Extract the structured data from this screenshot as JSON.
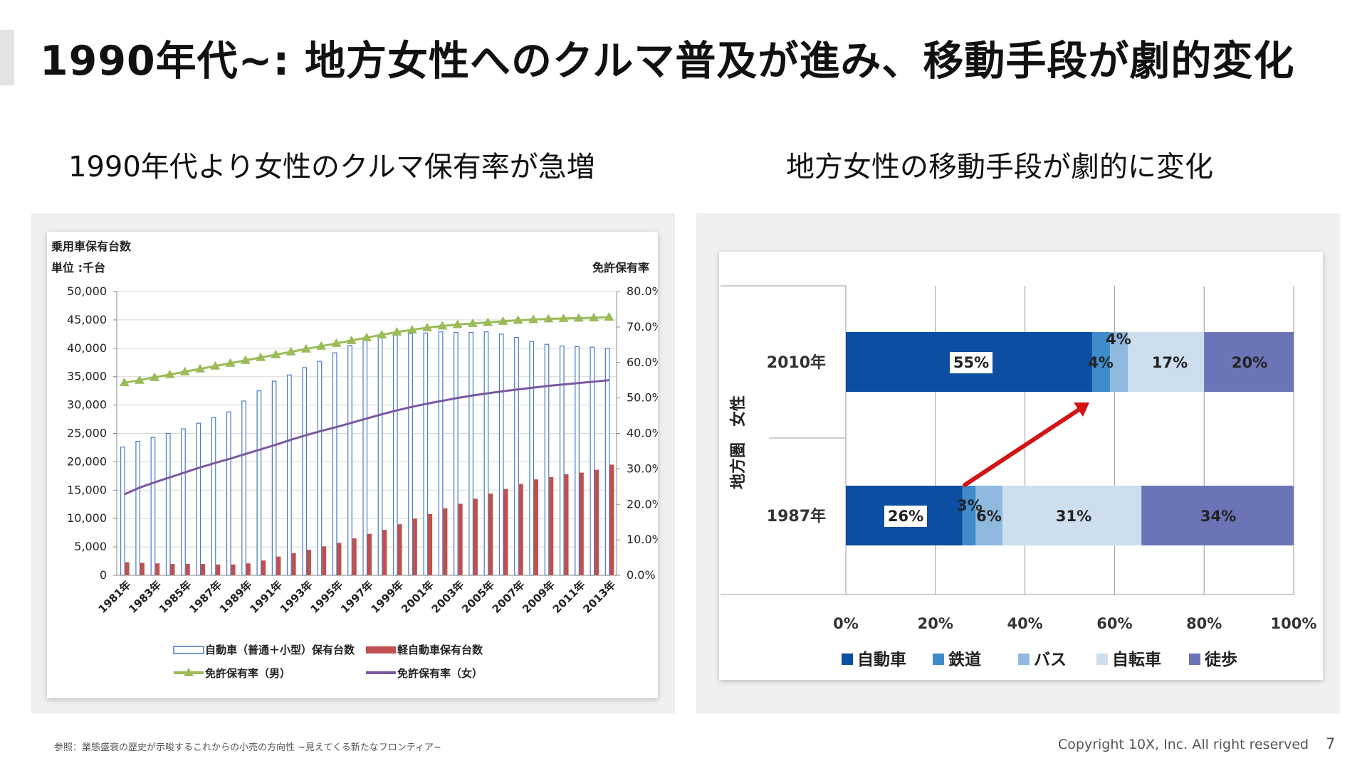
{
  "slide": {
    "title": "1990年代~: 地方女性へのクルマ普及が進み、移動手段が劇的変化",
    "left_subtitle": "1990年代より女性のクルマ保有率が急増",
    "right_subtitle": "地方女性の移動手段が劇的に変化",
    "source": "参照：業態盛衰の歴史が示唆するこれからの小売の方向性 ~見えてくる新たなフロンティア~",
    "copyright": "Copyright 10X, Inc. All right reserved",
    "page_number": "7"
  },
  "colors": {
    "ordinary_bar_stroke": "#4a7ac4",
    "kei_bar_fill": "#c0504d",
    "male_line": "#9bbb59",
    "female_line": "#7a58a0",
    "car": "#0b4ea2",
    "rail": "#3f8bcb",
    "bus": "#8fb9de",
    "bicycle": "#cddeee",
    "walk": "#6b74b6",
    "arrow": "#d21414"
  },
  "chart_data": [
    {
      "type": "bar",
      "title": "乗用車保有台数",
      "unit_label": "単位 :千台",
      "right_axis_title": "免許保有率",
      "categories": [
        "1981年",
        "1982年",
        "1983年",
        "1984年",
        "1985年",
        "1986年",
        "1987年",
        "1988年",
        "1989年",
        "1990年",
        "1991年",
        "1992年",
        "1993年",
        "1994年",
        "1995年",
        "1996年",
        "1997年",
        "1998年",
        "1999年",
        "2000年",
        "2001年",
        "2002年",
        "2003年",
        "2004年",
        "2005年",
        "2006年",
        "2007年",
        "2008年",
        "2009年",
        "2010年",
        "2011年",
        "2012年",
        "2013年"
      ],
      "x_tick_labels": [
        "1981年",
        "1983年",
        "1985年",
        "1987年",
        "1989年",
        "1991年",
        "1993年",
        "1995年",
        "1997年",
        "1999年",
        "2001年",
        "2003年",
        "2005年",
        "2007年",
        "2009年",
        "2011年",
        "2013年"
      ],
      "y_left": {
        "ylim": [
          0,
          50000
        ],
        "ticks": [
          "50,000",
          "45,000",
          "40,000",
          "35,000",
          "30,000",
          "25,000",
          "20,000",
          "15,000",
          "10,000",
          "5,000",
          "0"
        ]
      },
      "y_right": {
        "ylim": [
          0,
          80
        ],
        "ticks": [
          "80.0%",
          "70.0%",
          "60.0%",
          "50.0%",
          "40.0%",
          "30.0%",
          "20.0%",
          "10.0%",
          "0.0%"
        ]
      },
      "series": [
        {
          "name": "自動車（普通＋小型）保有台数",
          "axis": "left",
          "kind": "bar-outline",
          "values": [
            22600,
            23600,
            24300,
            25000,
            25800,
            26800,
            27800,
            28800,
            30700,
            32500,
            34200,
            35300,
            36600,
            37700,
            39200,
            40500,
            41400,
            42000,
            42300,
            42600,
            42700,
            42900,
            42800,
            42800,
            42900,
            42500,
            41900,
            41200,
            40700,
            40400,
            40300,
            40200,
            40000
          ]
        },
        {
          "name": "軽自動車保有台数",
          "axis": "left",
          "kind": "bar-filled",
          "values": [
            2300,
            2200,
            2100,
            2000,
            2000,
            2000,
            1900,
            1900,
            2100,
            2600,
            3300,
            3900,
            4500,
            5100,
            5700,
            6500,
            7300,
            8000,
            9000,
            10000,
            10800,
            11800,
            12600,
            13500,
            14400,
            15200,
            16100,
            16900,
            17300,
            17800,
            18100,
            18600,
            19500
          ]
        },
        {
          "name": "免許保有率（男）",
          "axis": "right",
          "kind": "line-triangle",
          "values": [
            54.3,
            55.0,
            55.8,
            56.6,
            57.4,
            58.2,
            59.0,
            59.8,
            60.6,
            61.4,
            62.2,
            63.0,
            63.8,
            64.6,
            65.4,
            66.2,
            67.0,
            67.8,
            68.6,
            69.2,
            69.8,
            70.3,
            70.7,
            71.0,
            71.3,
            71.6,
            71.9,
            72.1,
            72.3,
            72.4,
            72.5,
            72.6,
            72.8
          ]
        },
        {
          "name": "免許保有率（女）",
          "axis": "right",
          "kind": "line",
          "values": [
            22.8,
            24.7,
            26.2,
            27.6,
            29.0,
            30.4,
            31.7,
            32.9,
            34.2,
            35.5,
            36.8,
            38.2,
            39.5,
            40.7,
            41.8,
            43.0,
            44.2,
            45.4,
            46.5,
            47.5,
            48.4,
            49.2,
            50.0,
            50.7,
            51.3,
            51.9,
            52.4,
            52.9,
            53.4,
            53.8,
            54.2,
            54.6,
            55.0
          ]
        }
      ],
      "legend": {
        "ordinary": "自動車（普通＋小型）保有台数",
        "kei": "軽自動車保有台数",
        "male": "免許保有率（男）",
        "female": "免許保有率（女）"
      }
    },
    {
      "type": "bar",
      "orientation": "horizontal-stacked-100",
      "y_axis_label": "地方圏　女性",
      "categories": [
        "2010年",
        "1987年"
      ],
      "segments": [
        "自動車",
        "鉄道",
        "バス",
        "自転車",
        "徒歩"
      ],
      "values": [
        [
          55,
          4,
          4,
          17,
          20
        ],
        [
          26,
          3,
          6,
          31,
          34
        ]
      ],
      "labels": [
        [
          "55%",
          "4%",
          "4%",
          "17%",
          "20%"
        ],
        [
          "26%",
          "3%",
          "6%",
          "31%",
          "34%"
        ]
      ],
      "x_ticks": [
        "0%",
        "20%",
        "40%",
        "60%",
        "80%",
        "100%"
      ],
      "xlim": [
        0,
        100
      ]
    }
  ]
}
